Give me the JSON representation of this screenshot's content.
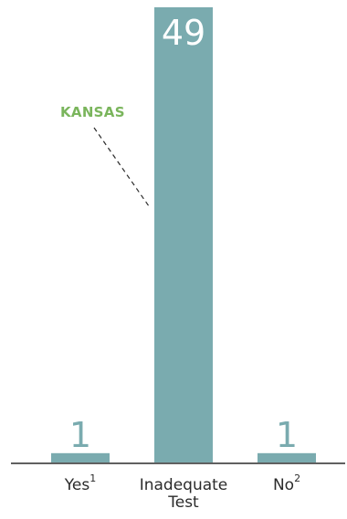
{
  "chart_data": {
    "type": "bar",
    "title": "",
    "xlabel": "",
    "ylabel": "",
    "ylim": [
      0,
      49
    ],
    "grid": false,
    "categories": [
      {
        "label": "Yes",
        "sup": "1"
      },
      {
        "label": "Inadequate\nTest",
        "sup": ""
      },
      {
        "label": "No",
        "sup": "2"
      }
    ],
    "values": [
      1,
      49,
      1
    ],
    "data_labels": [
      "1",
      "49",
      "1"
    ],
    "annotations": [
      {
        "text": "KANSAS",
        "target_category": "Inadequate\nTest"
      }
    ],
    "colors": {
      "bar": "#7aabaf",
      "label_inside": "#ffffff",
      "label_outside": "#7aabaf",
      "annotation": "#7ab55c",
      "axis": "#2b2b2b",
      "text": "#2b2b2b"
    }
  }
}
